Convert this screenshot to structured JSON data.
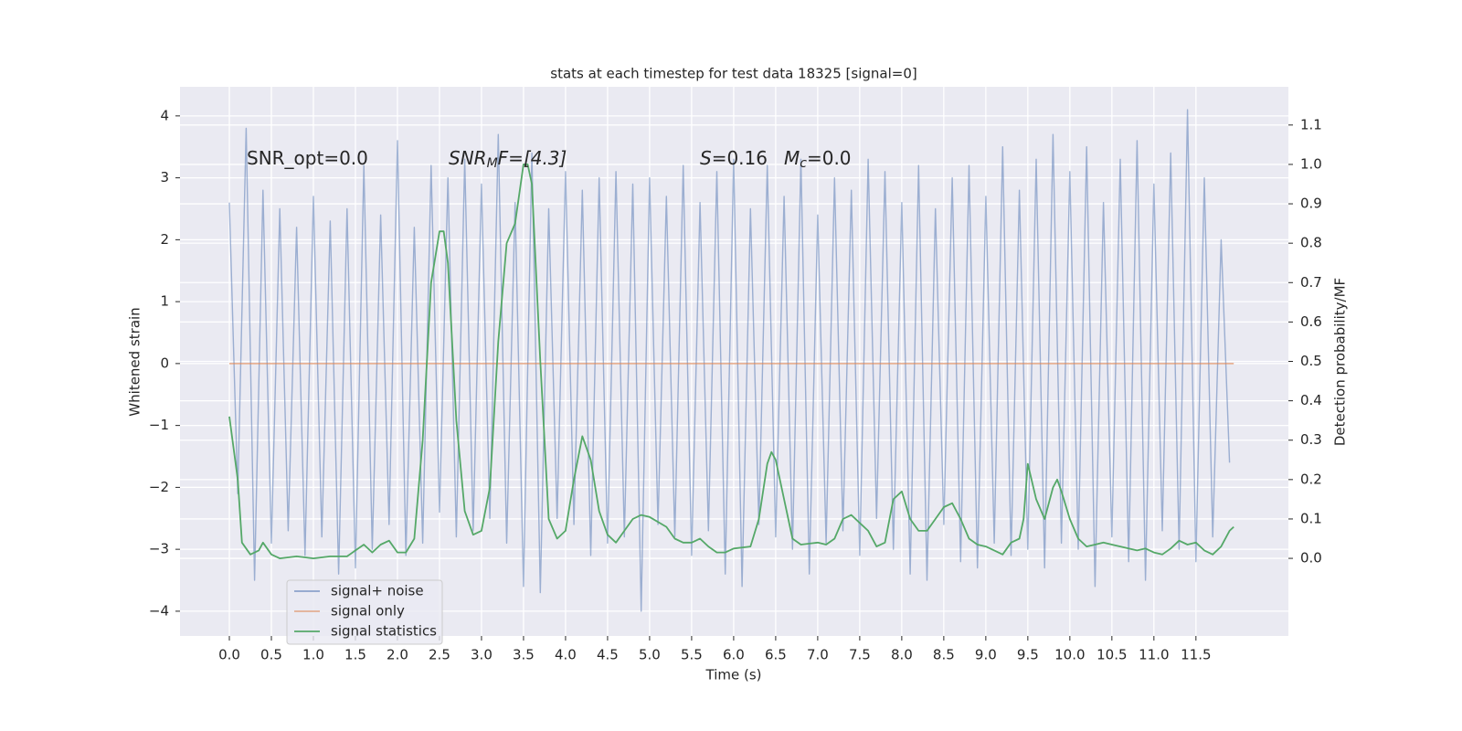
{
  "chart_data": {
    "type": "line",
    "title": "stats at each timestep for test data 18325 [signal=0]",
    "xlabel": "Time (s)",
    "ylabel": "Whitened strain",
    "y2label": "Detection probability/MF",
    "annotations": [
      [
        "SNR_opt=0.0"
      ],
      [
        "SNR",
        "M",
        "F=[4.3]"
      ],
      [
        "S",
        "=0.16"
      ],
      [
        "M",
        "c",
        "=0.0"
      ]
    ],
    "xlim": [
      -0.587,
      12.6
    ],
    "ylim": [
      -4.4,
      4.47
    ],
    "y2lim": [
      -0.197,
      1.197
    ],
    "xticks": [
      {
        "value": 0,
        "label": "0.0"
      },
      {
        "value": 0.5,
        "label": "0.5"
      },
      {
        "value": 1,
        "label": "1.0"
      },
      {
        "value": 1.5,
        "label": "1.5"
      },
      {
        "value": 2,
        "label": "2.0"
      },
      {
        "value": 2.5,
        "label": "2.5"
      },
      {
        "value": 3,
        "label": "3.0"
      },
      {
        "value": 3.5,
        "label": "3.5"
      },
      {
        "value": 4,
        "label": "4.0"
      },
      {
        "value": 4.5,
        "label": "4.5"
      },
      {
        "value": 5,
        "label": "5.0"
      },
      {
        "value": 5.5,
        "label": "5.5"
      },
      {
        "value": 6,
        "label": "6.0"
      },
      {
        "value": 6.5,
        "label": "6.5"
      },
      {
        "value": 7,
        "label": "7.0"
      },
      {
        "value": 7.5,
        "label": "7.5"
      },
      {
        "value": 8,
        "label": "8.0"
      },
      {
        "value": 8.5,
        "label": "8.5"
      },
      {
        "value": 9,
        "label": "9.0"
      },
      {
        "value": 9.5,
        "label": "9.5"
      },
      {
        "value": 10,
        "label": "10.0"
      },
      {
        "value": 10.5,
        "label": "10.5"
      },
      {
        "value": 11,
        "label": "11.0"
      },
      {
        "value": 11.5,
        "label": "11.5"
      }
    ],
    "yticks": [
      {
        "value": -4,
        "label": "−4"
      },
      {
        "value": -3,
        "label": "−3"
      },
      {
        "value": -2,
        "label": "−2"
      },
      {
        "value": -1,
        "label": "−1"
      },
      0,
      1,
      2,
      3,
      4
    ],
    "y2ticks": [
      {
        "value": 0,
        "label": "0.0"
      },
      0.1,
      0.2,
      0.3,
      0.4,
      0.5,
      0.6,
      0.7,
      0.8,
      0.9,
      {
        "value": 1,
        "label": "1.0"
      },
      1.1
    ],
    "grid": true,
    "legend": "lower left",
    "series": [
      {
        "name": "signal+ noise",
        "color": "#4c72b0",
        "x": [
          0,
          0.1,
          0.2,
          0.3,
          0.4,
          0.5,
          0.6,
          0.7,
          0.8,
          0.9,
          1,
          1.1,
          1.2,
          1.3,
          1.4,
          1.5,
          1.6,
          1.7,
          1.8,
          1.9,
          2,
          2.1,
          2.2,
          2.3,
          2.4,
          2.5,
          2.6,
          2.7,
          2.8,
          2.9,
          3,
          3.1,
          3.2,
          3.3,
          3.4,
          3.5,
          3.6,
          3.7,
          3.8,
          3.9,
          4,
          4.1,
          4.2,
          4.3,
          4.4,
          4.5,
          4.6,
          4.7,
          4.8,
          4.9,
          5,
          5.1,
          5.2,
          5.3,
          5.4,
          5.5,
          5.6,
          5.7,
          5.8,
          5.9,
          6,
          6.1,
          6.2,
          6.3,
          6.4,
          6.5,
          6.6,
          6.7,
          6.8,
          6.9,
          7,
          7.1,
          7.2,
          7.3,
          7.4,
          7.5,
          7.6,
          7.7,
          7.8,
          7.9,
          8,
          8.1,
          8.2,
          8.3,
          8.4,
          8.5,
          8.6,
          8.7,
          8.8,
          8.9,
          9,
          9.1,
          9.2,
          9.3,
          9.4,
          9.5,
          9.6,
          9.7,
          9.8,
          9.9,
          10,
          10.1,
          10.2,
          10.3,
          10.4,
          10.5,
          10.6,
          10.7,
          10.8,
          10.9,
          11,
          11.1,
          11.2,
          11.3,
          11.4,
          11.5,
          11.6,
          11.7,
          11.8,
          11.9
        ],
        "values": [
          2.6,
          -2.1,
          3.8,
          -3.5,
          2.8,
          -2.9,
          2.5,
          -2.7,
          2.2,
          -3.1,
          2.7,
          -2.8,
          2.3,
          -3.4,
          2.5,
          -3.3,
          3.2,
          -3.0,
          2.4,
          -2.6,
          3.6,
          -3.1,
          2.2,
          -2.9,
          3.2,
          -2.4,
          3.0,
          -2.8,
          3.3,
          -2.7,
          2.9,
          -2.5,
          3.7,
          -2.9,
          2.6,
          -3.6,
          3.4,
          -3.7,
          2.5,
          -2.5,
          3.1,
          -2.6,
          2.8,
          -3.1,
          3.0,
          -2.9,
          3.1,
          -2.8,
          2.9,
          -4.0,
          3.0,
          -2.6,
          2.7,
          -2.8,
          3.2,
          -3.1,
          2.6,
          -2.7,
          3.1,
          -3.4,
          3.3,
          -3.6,
          2.5,
          -2.6,
          3.2,
          -2.8,
          2.7,
          -3.0,
          3.3,
          -3.4,
          2.4,
          -2.9,
          3.0,
          -2.7,
          2.8,
          -3.1,
          3.3,
          -2.5,
          3.1,
          -3.0,
          2.6,
          -3.4,
          3.2,
          -3.5,
          2.5,
          -2.6,
          3.0,
          -3.2,
          3.2,
          -3.3,
          2.7,
          -2.9,
          3.5,
          -3.1,
          2.8,
          -3.0,
          3.3,
          -3.3,
          3.7,
          -2.9,
          3.1,
          -3.0,
          3.5,
          -3.6,
          2.6,
          -2.8,
          3.3,
          -3.2,
          3.6,
          -3.5,
          2.9,
          -2.7,
          3.4,
          -3.0,
          4.1,
          -3.2,
          3.0,
          -2.8,
          2.0,
          -1.6
        ]
      },
      {
        "name": "signal only",
        "color": "#dd8452",
        "x": [
          0,
          11.95
        ],
        "values": [
          0,
          0
        ]
      },
      {
        "name": "signal statistics",
        "color": "#55a868",
        "axis": "y2",
        "x": [
          0,
          0.1,
          0.15,
          0.25,
          0.35,
          0.4,
          0.5,
          0.6,
          0.8,
          1,
          1.2,
          1.4,
          1.5,
          1.6,
          1.7,
          1.8,
          1.9,
          2,
          2.1,
          2.2,
          2.3,
          2.4,
          2.5,
          2.55,
          2.6,
          2.7,
          2.8,
          2.9,
          3,
          3.1,
          3.2,
          3.3,
          3.4,
          3.5,
          3.55,
          3.6,
          3.7,
          3.8,
          3.9,
          4,
          4.1,
          4.2,
          4.3,
          4.4,
          4.5,
          4.6,
          4.7,
          4.8,
          4.9,
          5,
          5.2,
          5.3,
          5.4,
          5.5,
          5.6,
          5.7,
          5.8,
          5.9,
          6,
          6.2,
          6.3,
          6.4,
          6.45,
          6.5,
          6.6,
          6.7,
          6.8,
          7,
          7.1,
          7.2,
          7.3,
          7.4,
          7.5,
          7.6,
          7.7,
          7.8,
          7.9,
          8,
          8.1,
          8.2,
          8.3,
          8.4,
          8.5,
          8.6,
          8.7,
          8.8,
          8.9,
          9,
          9.2,
          9.3,
          9.4,
          9.45,
          9.5,
          9.6,
          9.7,
          9.8,
          9.85,
          9.9,
          10,
          10.1,
          10.2,
          10.3,
          10.4,
          10.5,
          10.6,
          10.8,
          10.9,
          11,
          11.1,
          11.2,
          11.3,
          11.4,
          11.5,
          11.6,
          11.7,
          11.8,
          11.9,
          11.95
        ],
        "values": [
          0.36,
          0.2,
          0.04,
          0.01,
          0.02,
          0.04,
          0.01,
          0,
          0.005,
          0,
          0.005,
          0.005,
          0.02,
          0.035,
          0.015,
          0.035,
          0.045,
          0.015,
          0.015,
          0.05,
          0.3,
          0.7,
          0.83,
          0.83,
          0.75,
          0.35,
          0.12,
          0.06,
          0.07,
          0.18,
          0.55,
          0.8,
          0.85,
          1.0,
          1.0,
          0.95,
          0.5,
          0.1,
          0.05,
          0.07,
          0.2,
          0.31,
          0.25,
          0.12,
          0.06,
          0.04,
          0.07,
          0.1,
          0.11,
          0.105,
          0.08,
          0.05,
          0.04,
          0.04,
          0.05,
          0.03,
          0.015,
          0.015,
          0.025,
          0.03,
          0.1,
          0.24,
          0.27,
          0.25,
          0.15,
          0.05,
          0.035,
          0.04,
          0.035,
          0.05,
          0.1,
          0.11,
          0.09,
          0.07,
          0.03,
          0.04,
          0.15,
          0.17,
          0.1,
          0.07,
          0.07,
          0.1,
          0.13,
          0.14,
          0.1,
          0.05,
          0.035,
          0.03,
          0.01,
          0.04,
          0.05,
          0.1,
          0.24,
          0.15,
          0.1,
          0.18,
          0.2,
          0.17,
          0.1,
          0.05,
          0.03,
          0.035,
          0.04,
          0.035,
          0.03,
          0.02,
          0.025,
          0.015,
          0.01,
          0.025,
          0.045,
          0.035,
          0.04,
          0.02,
          0.01,
          0.03,
          0.07,
          0.08
        ]
      }
    ]
  }
}
